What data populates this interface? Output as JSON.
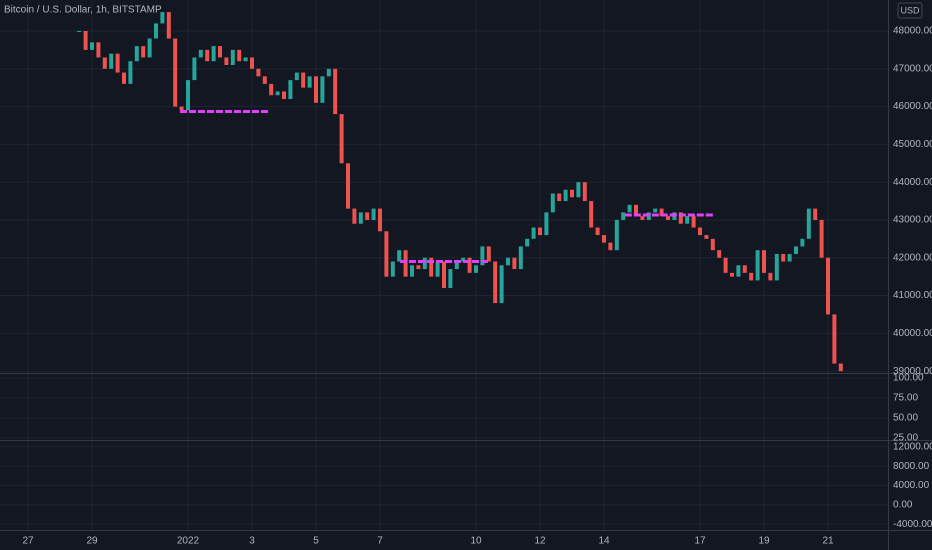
{
  "chart_data": {
    "type": "candlestick",
    "title": "Bitcoin / U.S. Dollar, 1h, BITSTAMP",
    "currency": "USD",
    "x": [
      1.6,
      1.8,
      2,
      2.2,
      2.4,
      2.6,
      2.8,
      3,
      3.2,
      3.4,
      3.6,
      3.8,
      4,
      4.2,
      4.4,
      4.6,
      4.8,
      5,
      5.2,
      5.4,
      5.6,
      5.8,
      6,
      6.2,
      6.4,
      6.6,
      6.8,
      7,
      7.2,
      7.4,
      7.6,
      7.8,
      8,
      8.2,
      8.4,
      8.6,
      8.8,
      9,
      9.2,
      9.4,
      9.6,
      9.8,
      10,
      10.2,
      10.4,
      10.6,
      10.8,
      11,
      11.2,
      11.4,
      11.6,
      11.8,
      12,
      12.2,
      12.4,
      12.6,
      12.8,
      13,
      13.2,
      13.4,
      13.6,
      13.8,
      14,
      14.2,
      14.4,
      14.6,
      14.8,
      15,
      15.2,
      15.4,
      15.6,
      15.8,
      16,
      16.2,
      16.4,
      16.6,
      16.8,
      17,
      17.2,
      17.4,
      17.6,
      17.8,
      18,
      18.2,
      18.4,
      18.6,
      18.8,
      19,
      19.2,
      19.4,
      19.6,
      19.8,
      20,
      20.2,
      20.4,
      20.6,
      20.8,
      21,
      21.2,
      21.4,
      21.6,
      21.8,
      22,
      22.2,
      22.4,
      22.6,
      22.8,
      23,
      23.2,
      23.4,
      23.6,
      23.8,
      24,
      24.2,
      24.4,
      24.6,
      24.8,
      25,
      25.2,
      25.4
    ],
    "values": [
      48000,
      47500,
      47700,
      47300,
      47000,
      47400,
      46900,
      46600,
      47200,
      47600,
      47300,
      47800,
      48200,
      48500,
      47800,
      46000,
      45900,
      46700,
      47300,
      47500,
      47200,
      47600,
      47300,
      47100,
      47500,
      47200,
      47300,
      47000,
      46800,
      46600,
      46300,
      46400,
      46200,
      46700,
      46900,
      46500,
      46800,
      46100,
      46800,
      47000,
      45800,
      44500,
      43300,
      42900,
      43200,
      43000,
      43300,
      42700,
      41500,
      41900,
      42200,
      41500,
      41800,
      41700,
      42000,
      41500,
      41900,
      41200,
      41700,
      41900,
      42000,
      41600,
      41800,
      42300,
      41900,
      40800,
      41800,
      42000,
      41700,
      42300,
      42500,
      42800,
      42600,
      43200,
      43700,
      43500,
      43800,
      43600,
      44000,
      43500,
      42800,
      42600,
      42400,
      42200,
      43000,
      43200,
      43400,
      43100,
      43000,
      43200,
      43300,
      43100,
      43000,
      43200,
      42900,
      43100,
      42800,
      42600,
      42500,
      42200,
      42000,
      41600,
      41500,
      41800,
      41600,
      41400,
      42200,
      41600,
      41400,
      42100,
      41900,
      42100,
      42300,
      42500,
      43300,
      43000,
      42000,
      40500,
      39200,
      39000
    ],
    "up_color": "#26a69a",
    "down_color": "#ef5350",
    "xlim": [
      -0.875,
      26.875
    ],
    "xticks": [
      {
        "value": 0,
        "label": "27"
      },
      {
        "value": 2,
        "label": "29"
      },
      {
        "value": 5,
        "label": "2022"
      },
      {
        "value": 7,
        "label": "3"
      },
      {
        "value": 9,
        "label": "5"
      },
      {
        "value": 11,
        "label": "7"
      },
      {
        "value": 14,
        "label": "10"
      },
      {
        "value": 16,
        "label": "12"
      },
      {
        "value": 18,
        "label": "14"
      },
      {
        "value": 21,
        "label": "17"
      },
      {
        "value": 23,
        "label": "19"
      },
      {
        "value": 25,
        "label": "21"
      }
    ],
    "ylim": [
      38950,
      48820
    ],
    "yticks": [
      {
        "value": 39000,
        "label": "39000.00"
      },
      {
        "value": 40000,
        "label": "40000.00"
      },
      {
        "value": 41000,
        "label": "41000.00"
      },
      {
        "value": 42000,
        "label": "42000.00"
      },
      {
        "value": 43000,
        "label": "43000.00"
      },
      {
        "value": 44000,
        "label": "44000.00"
      },
      {
        "value": 45000,
        "label": "45000.00"
      },
      {
        "value": 46000,
        "label": "46000.00"
      },
      {
        "value": 47000,
        "label": "47000.00"
      },
      {
        "value": 48000,
        "label": "48000.00"
      }
    ],
    "grid": true,
    "level_color": "#e040fb",
    "levels": [
      {
        "value": 45870,
        "x": [
          4.75,
          7.5
        ]
      },
      {
        "value": 41900,
        "x": [
          11.625,
          14.4
        ]
      },
      {
        "value": 43130,
        "x": [
          18.65,
          21.4
        ]
      }
    ],
    "indicator_panes": [
      {
        "ylim": [
          22.5,
          105
        ],
        "yticks": [
          {
            "value": 100,
            "label": "100.00"
          },
          {
            "value": 75,
            "label": "75.00"
          },
          {
            "value": 50,
            "label": "50.00"
          },
          {
            "value": 25,
            "label": "25.00"
          }
        ]
      },
      {
        "ylim": [
          -5215,
          13215
        ],
        "yticks": [
          {
            "value": 12000,
            "label": "12000.00"
          },
          {
            "value": 8000,
            "label": "8000.00"
          },
          {
            "value": 4000,
            "label": "4000.00"
          },
          {
            "value": 0,
            "label": "0.00"
          },
          {
            "value": -4000,
            "label": "-4000.00"
          }
        ]
      }
    ]
  }
}
